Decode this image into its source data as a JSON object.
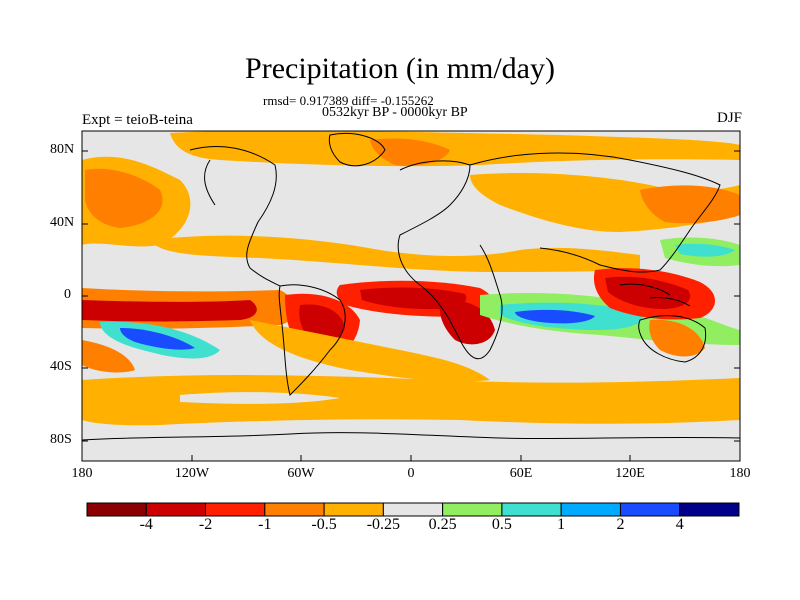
{
  "title": "Precipitation (in mm/day)",
  "stats": "rmsd= 0.917389 diff= -0.155262",
  "period": "0532kyr BP - 0000kyr BP",
  "experiment": "Expt = teioB-teina",
  "season": "DJF",
  "lat_labels": [
    "80N",
    "40N",
    "0",
    "40S",
    "80S"
  ],
  "lon_labels": [
    "180",
    "120W",
    "60W",
    "0",
    "60E",
    "120E",
    "180"
  ],
  "colorbar": {
    "colors": [
      "#8b0000",
      "#cc0000",
      "#ff2000",
      "#ff7f00",
      "#ffb000",
      "#e6e6e6",
      "#90ee60",
      "#40e0d0",
      "#00aaff",
      "#1a4cff",
      "#00008b"
    ],
    "labels": [
      "-4",
      "-2",
      "-1",
      "-0.5",
      "-0.25",
      "0.25",
      "0.5",
      "1",
      "2",
      "4"
    ]
  }
}
